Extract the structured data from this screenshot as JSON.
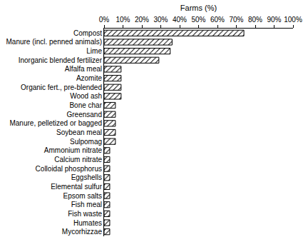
{
  "chart_data": {
    "type": "bar",
    "orientation": "horizontal",
    "x_label": "Farms (%)",
    "categories": [
      "Compost",
      "Manure (incl. penned animals)",
      "Lime",
      "Inorganic blended fertilizer",
      "Alfalfa meal",
      "Azomite",
      "Organic fert., pre-blended",
      "Wood ash",
      "Bone char",
      "Greensand",
      "Manure, pelletized or bagged",
      "Soybean meal",
      "Sulpomag",
      "Ammonium nitrate",
      "Calcium nitrate",
      "Colloidal phosphorus",
      "Eggshells",
      "Elemental sulfur",
      "Epsom salts",
      "Fish meal",
      "Fish waste",
      "Humates",
      "Mycorhizzae"
    ],
    "values": [
      74,
      36,
      35,
      29,
      9,
      9,
      9,
      9,
      6,
      6,
      6,
      6,
      6,
      3,
      3,
      3,
      3,
      3,
      3,
      3,
      3,
      3,
      3
    ],
    "color": "#000000",
    "xlim": [
      0,
      100
    ],
    "xticks": [
      {
        "value": 0,
        "label": "0%"
      },
      {
        "value": 10,
        "label": "10%"
      },
      {
        "value": 20,
        "label": "20%"
      },
      {
        "value": 30,
        "label": "30%"
      },
      {
        "value": 40,
        "label": "40%"
      },
      {
        "value": 50,
        "label": "50%"
      },
      {
        "value": 60,
        "label": "60%"
      },
      {
        "value": 70,
        "label": "70%"
      },
      {
        "value": 80,
        "label": "80%"
      },
      {
        "value": 90,
        "label": "90%"
      },
      {
        "value": 100,
        "label": "100%"
      }
    ],
    "grid": false
  }
}
